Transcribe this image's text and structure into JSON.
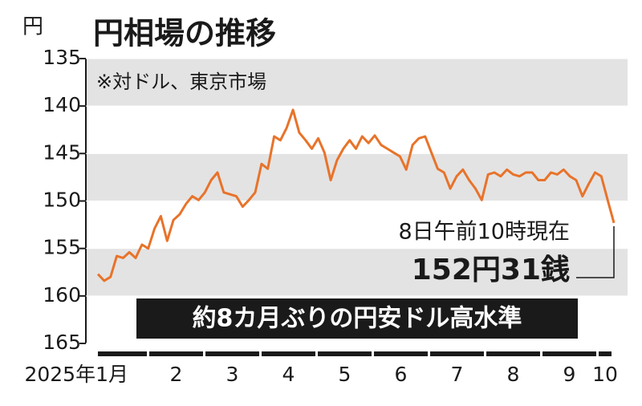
{
  "chart_data": {
    "type": "line",
    "title": "円相場の推移",
    "y_unit": "円",
    "note": "※対ドル、東京市場",
    "timestamp": "8日午前10時現在",
    "last_value_label": "152円31銭",
    "headline": "約8カ月ぶりの円安ドル高水準",
    "months": [
      "2025年1月",
      "2",
      "3",
      "4",
      "5",
      "6",
      "7",
      "8",
      "9",
      "10"
    ],
    "ylim": [
      135,
      165
    ],
    "yticks": [
      135,
      140,
      145,
      150,
      155,
      160,
      165
    ],
    "y_inverted": true,
    "bands": true,
    "series": [
      {
        "color": "#e8732a",
        "values": [
          157.7,
          158.4,
          158,
          155.8,
          156,
          155.4,
          156,
          154.6,
          155,
          152.9,
          151.6,
          154.2,
          152,
          151.4,
          150.3,
          149.5,
          149.9,
          149.1,
          147.8,
          147,
          149.1,
          149.3,
          149.5,
          150.6,
          149.9,
          149.1,
          146.1,
          146.6,
          143.2,
          143.6,
          142.3,
          140.4,
          142.8,
          143.6,
          144.5,
          143.4,
          144.9,
          147.8,
          145.7,
          144.5,
          143.6,
          144.5,
          143.2,
          143.9,
          143.1,
          144.1,
          144.5,
          144.9,
          145.3,
          146.7,
          144.1,
          143.4,
          143.2,
          144.9,
          146.6,
          147,
          148.7,
          147.4,
          146.7,
          147.8,
          148.7,
          149.9,
          147.2,
          147,
          147.4,
          146.7,
          147.2,
          147.4,
          147,
          147,
          147.8,
          147.8,
          147,
          147.2,
          146.7,
          147.4,
          147.8,
          149.5,
          148.2,
          147,
          147.4,
          149.9,
          152.31
        ]
      }
    ]
  }
}
